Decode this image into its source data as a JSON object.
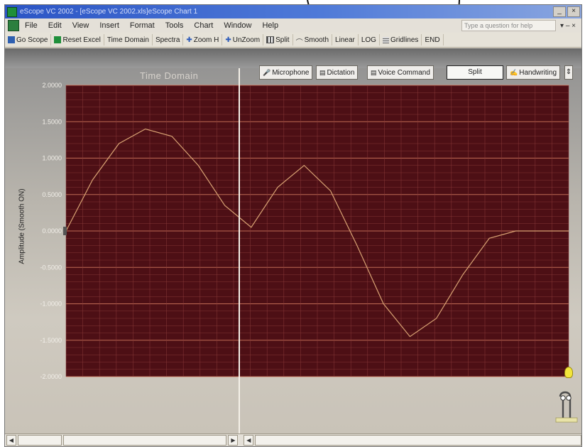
{
  "window": {
    "title": "eScope VC 2002 - [eScope VC 2002.xls]eScope Chart 1",
    "controls": [
      "_",
      "×"
    ]
  },
  "menu": {
    "items": [
      {
        "label": "File",
        "u": "F"
      },
      {
        "label": "Edit",
        "u": "E"
      },
      {
        "label": "View",
        "u": "V"
      },
      {
        "label": "Insert",
        "u": "I"
      },
      {
        "label": "Format",
        "u": "o"
      },
      {
        "label": "Tools",
        "u": "T"
      },
      {
        "label": "Chart",
        "u": "C"
      },
      {
        "label": "Window",
        "u": "W"
      },
      {
        "label": "Help",
        "u": "H"
      }
    ],
    "help_placeholder": "Type a question for help",
    "tail": "▾ – ×"
  },
  "toolbar": {
    "go_scope": "Go Scope",
    "reset_excel": "Reset Excel",
    "time_domain": "Time Domain",
    "spectra": "Spectra",
    "zoom_h": "Zoom H",
    "unzoom": "UnZoom",
    "split": "Split",
    "smooth": "Smooth",
    "linear": "Linear",
    "log": "LOG",
    "gridlines": "Gridlines",
    "end": "END"
  },
  "pane": {
    "title": "Time Domain",
    "buttons": {
      "microphone": "Microphone",
      "dictation": "Dictation",
      "voice_command": "Voice Command",
      "split": "Split",
      "handwriting": "Handwriting"
    }
  },
  "chart_data": {
    "type": "line",
    "title": "Time Domain",
    "ylabel": "Amplitude (Smooth ON)",
    "ylim": [
      -2.0,
      2.0
    ],
    "y_ticks": [
      "2.0000",
      "1.5000",
      "1.0000",
      "0.5000",
      "0.0000",
      "-0.5000",
      "-1.0000",
      "-1.5000",
      "-2.0000"
    ],
    "y_tick_values": [
      2.0,
      1.5,
      1.0,
      0.5,
      0.0,
      -0.5,
      -1.0,
      -1.5,
      -2.0
    ],
    "grid": true,
    "series": [
      {
        "color": "#d8a273",
        "values": [
          0.0,
          0.7,
          1.2,
          1.4,
          1.3,
          0.9,
          0.35,
          0.05,
          0.6,
          0.9,
          0.55,
          -0.2,
          -1.0,
          -1.45,
          -1.2,
          -0.6,
          -0.1,
          0.0,
          0.0,
          0.0
        ]
      }
    ]
  },
  "colors": {
    "title_bar": "#2b55c5",
    "plot_bg": "#4d0f15",
    "grid_major": "#d47a60",
    "grid_minor": "#8c3b3a",
    "trace": "#d8a273",
    "split_line": "#f4f0e8"
  }
}
